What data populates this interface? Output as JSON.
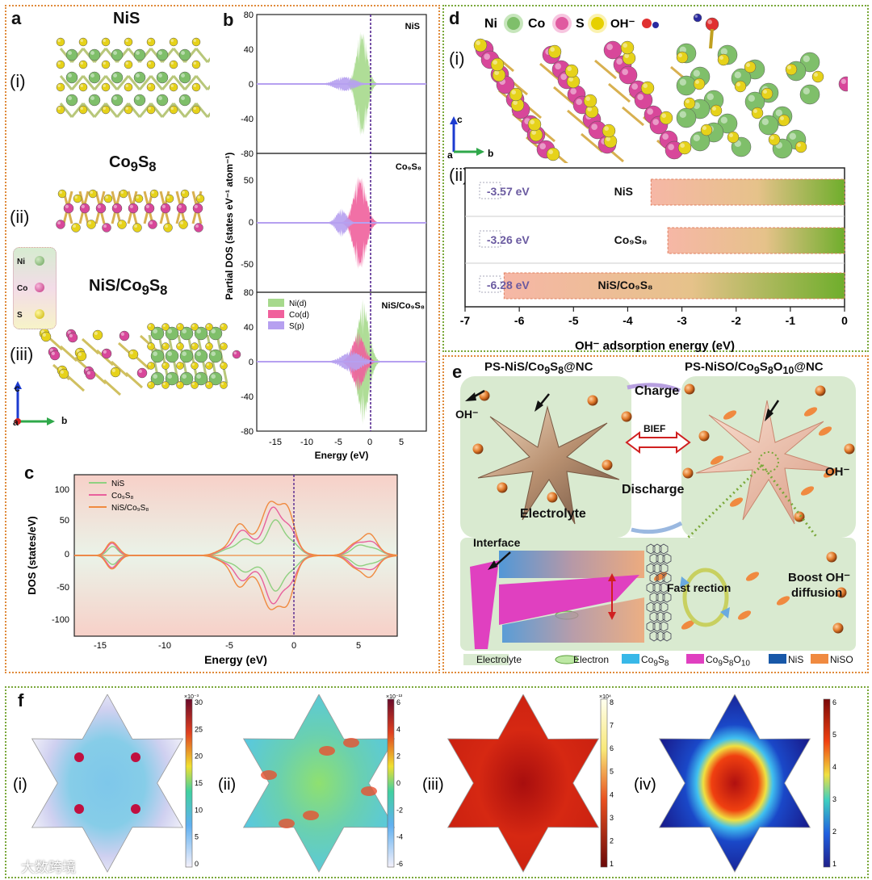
{
  "panels": {
    "a": {
      "label": "a",
      "structures": [
        {
          "roman": "(i)",
          "title": "NiS"
        },
        {
          "roman": "(ii)",
          "title": "Co9S8"
        },
        {
          "roman": "(iii)",
          "title": "NiS/Co9S8"
        }
      ],
      "legend": [
        "Ni",
        "Co",
        "S"
      ],
      "axes": {
        "c": "c",
        "a": "a",
        "b": "b"
      }
    },
    "b": {
      "label": "b",
      "ylabel": "Partial DOS (states eV⁻¹ atom⁻¹)",
      "xlabel": "Energy (eV)",
      "subplots": [
        "NiS",
        "Co9S8",
        "NiS/Co9S8"
      ],
      "legend": [
        "Ni(d)",
        "Co(d)",
        "S(p)"
      ]
    },
    "c": {
      "label": "c",
      "ylabel": "DOS (states/eV)",
      "xlabel": "Energy (eV)",
      "legend": [
        "NiS",
        "Co9S8",
        "NiS/Co9S8"
      ]
    },
    "d": {
      "label": "d",
      "legend": [
        "Ni",
        "Co",
        "S",
        "OH⁻"
      ],
      "sub_i": "(i)",
      "sub_ii": "(ii)",
      "xlabel": "OH⁻ adsorption energy (eV)",
      "bars": [
        {
          "name": "NiS",
          "value_text": "-3.57 eV",
          "value": -3.57
        },
        {
          "name": "Co9S8",
          "value_text": "-3.26 eV",
          "value": -3.26
        },
        {
          "name": "NiS/Co9S8",
          "value_text": "-6.28 eV",
          "value": -6.28
        }
      ]
    },
    "e": {
      "label": "e",
      "left_title": "PS-NiS/Co9S8@NC",
      "right_title": "PS-NiSO/Co9S8O10@NC",
      "charge": "Charge",
      "discharge": "Discharge",
      "bief": "BIEF",
      "electrolyte": "Electrolyte",
      "oh_left": "OH⁻",
      "oh_right": "OH⁻",
      "interface": "Interface",
      "fast": "Fast rection",
      "boost1": "Boost OH⁻",
      "boost2": "diffusion",
      "legend": [
        "Electrolyte",
        "Electron",
        "Co9S8",
        "Co9S8O10",
        "NiS",
        "NiSO"
      ]
    },
    "f": {
      "label": "f",
      "maps": [
        {
          "roman": "(i)",
          "exp": "×10⁻³",
          "ticks": [
            "30",
            "25",
            "20",
            "15",
            "10",
            "5",
            "0"
          ]
        },
        {
          "roman": "(ii)",
          "exp": "×10⁻¹³",
          "ticks": [
            "6",
            "4",
            "2",
            "0",
            "-2",
            "-4",
            "-6"
          ]
        },
        {
          "roman": "(iii)",
          "exp": "×10⁴",
          "ticks": [
            "8",
            "7",
            "6",
            "5",
            "4",
            "3",
            "2",
            "1"
          ]
        },
        {
          "roman": "(iv)",
          "exp": "",
          "ticks": [
            "6",
            "5",
            "4",
            "3",
            "2",
            "1"
          ]
        }
      ]
    },
    "watermark": "大数跨境"
  },
  "chart_data": [
    {
      "type": "bar",
      "title": "",
      "xlabel": "OH⁻ adsorption energy (eV)",
      "categories": [
        "NiS",
        "Co9S8",
        "NiS/Co9S8"
      ],
      "values": [
        -3.57,
        -3.26,
        -6.28
      ],
      "xlim": [
        -7,
        0
      ],
      "xticks": [
        "-7",
        "-6",
        "-5",
        "-4",
        "-3",
        "-2",
        "-1",
        "0"
      ]
    },
    {
      "type": "area",
      "title": "",
      "xlabel": "Energy (eV)",
      "ylabel": "DOS (states/eV)",
      "xlim": [
        -17,
        8
      ],
      "ylim": [
        -110,
        110
      ],
      "xticks": [
        "-15",
        "-10",
        "-5",
        "0",
        "5"
      ],
      "yticks": [
        "100",
        "50",
        "0",
        "-50",
        "-100"
      ],
      "series": [
        {
          "name": "NiS",
          "peak": 50
        },
        {
          "name": "Co9S8",
          "peak": 75
        },
        {
          "name": "NiS/Co9S8",
          "peak": 98
        }
      ]
    },
    {
      "type": "area",
      "title": "",
      "xlabel": "Energy (eV)",
      "ylabel": "Partial DOS (states eV⁻¹ atom⁻¹)",
      "xlim": [
        -17,
        8
      ],
      "xticks": [
        "-15",
        "-10",
        "-5",
        "0",
        "5"
      ],
      "subplots": [
        {
          "name": "NiS",
          "yticks": [
            "80",
            "40",
            "0",
            "-40",
            "-80"
          ]
        },
        {
          "name": "Co9S8",
          "yticks": [
            "50",
            "0",
            "-50"
          ]
        },
        {
          "name": "NiS/Co9S8",
          "yticks": [
            "80",
            "40",
            "0",
            "-40",
            "-80"
          ]
        }
      ]
    }
  ]
}
